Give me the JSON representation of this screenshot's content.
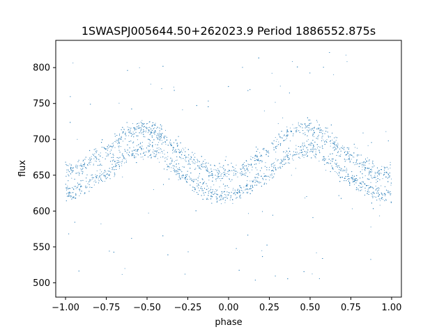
{
  "chart_data": {
    "type": "scatter",
    "title": "1SWASPJ005644.50+262023.9 Period 1886552.875s",
    "xlabel": "phase",
    "ylabel": "flux",
    "xlim": [
      -1.06,
      1.06
    ],
    "ylim": [
      480,
      838
    ],
    "xticks": [
      -1.0,
      -0.75,
      -0.5,
      -0.25,
      0.0,
      0.25,
      0.5,
      0.75,
      1.0
    ],
    "xtick_labels": [
      "−1.00",
      "−0.75",
      "−0.50",
      "−0.25",
      "0.00",
      "0.25",
      "0.50",
      "0.75",
      "1.00"
    ],
    "yticks": [
      500,
      550,
      600,
      650,
      700,
      750,
      800
    ],
    "ytick_labels": [
      "500",
      "550",
      "600",
      "650",
      "700",
      "750",
      "800"
    ],
    "grid": false,
    "marker_color": "#1f77b4",
    "series": [
      {
        "phase": [
          -1.0,
          -0.95,
          -0.9,
          -0.85,
          -0.8,
          -0.75,
          -0.7,
          -0.65,
          -0.6,
          -0.55,
          -0.5,
          -0.45,
          -0.4,
          -0.35,
          -0.3,
          -0.25,
          -0.2,
          -0.15,
          -0.1,
          -0.05,
          0.0,
          0.05,
          0.1,
          0.15,
          0.2,
          0.25,
          0.3,
          0.35,
          0.4,
          0.45,
          0.5,
          0.55,
          0.6,
          0.65,
          0.7,
          0.75,
          0.8,
          0.85,
          0.9,
          0.95,
          1.0
        ],
        "flux": [
          645,
          640,
          648,
          655,
          662,
          668,
          678,
          690,
          698,
          700,
          702,
          698,
          688,
          678,
          668,
          660,
          652,
          646,
          640,
          636,
          638,
          640,
          645,
          655,
          662,
          668,
          678,
          690,
          698,
          700,
          702,
          698,
          688,
          678,
          668,
          660,
          652,
          646,
          640,
          636,
          638
        ],
        "scatter_range": [
          500,
          822
        ]
      }
    ]
  }
}
